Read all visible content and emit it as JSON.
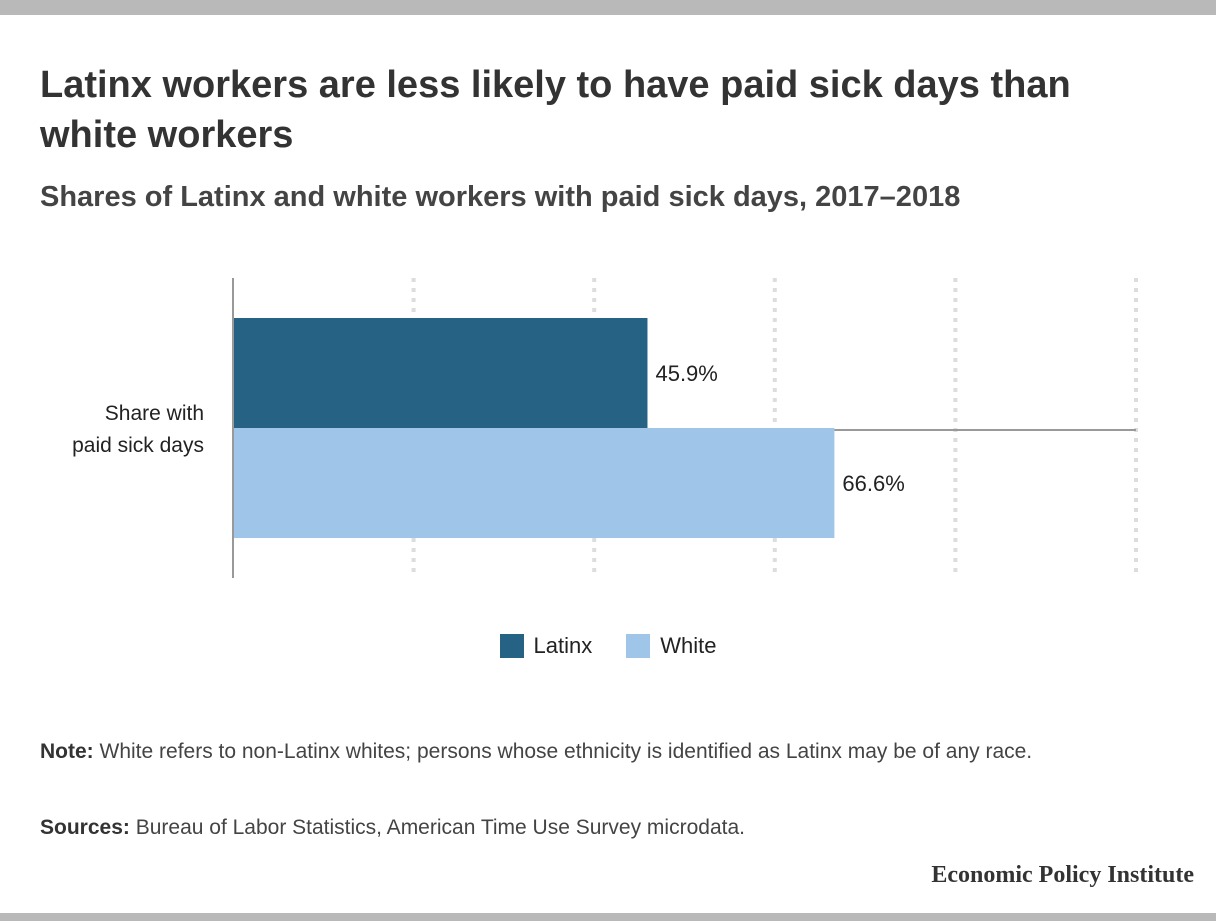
{
  "title": "Latinx workers are less likely to have paid sick days than white workers",
  "subtitle": "Shares of Latinx and white workers with paid sick days, 2017–2018",
  "colors": {
    "latinx": "#256283",
    "white": "#9fc5e8",
    "grid": "#dddddd",
    "axis": "#999999"
  },
  "chart_data": {
    "type": "bar",
    "orientation": "horizontal",
    "categories": [
      "Share with\npaid sick days"
    ],
    "series": [
      {
        "name": "Latinx",
        "values": [
          45.9
        ],
        "labels": [
          "45.9%"
        ]
      },
      {
        "name": "White",
        "values": [
          66.6
        ],
        "labels": [
          "66.6%"
        ]
      }
    ],
    "xlim": [
      0,
      100
    ],
    "grid": true,
    "legend": "bottom-center"
  },
  "note": {
    "label": "Note:",
    "text": " White refers to non-Latinx whites; persons whose ethnicity is identified as Latinx may be of any race."
  },
  "sources": {
    "label": "Sources:",
    "text": " Bureau of Labor Statistics, American Time Use Survey microdata."
  },
  "logo": "Economic Policy Institute"
}
